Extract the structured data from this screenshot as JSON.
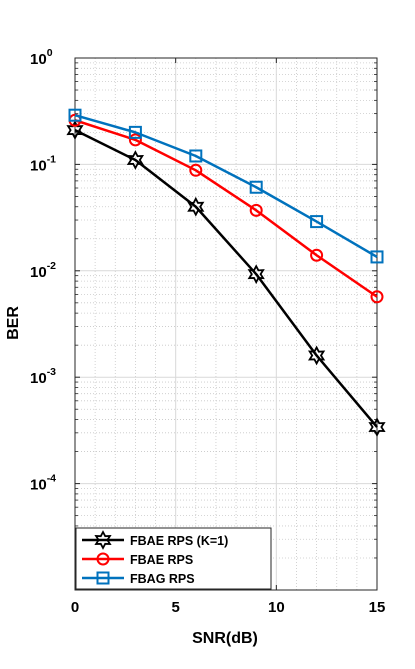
{
  "chart_data": {
    "type": "line",
    "title": "",
    "xlabel": "SNR(dB)",
    "ylabel": "BER",
    "xlim": [
      0,
      15
    ],
    "ylim": [
      1e-05,
      1
    ],
    "yscale": "log",
    "grid": true,
    "minor_grid": true,
    "legend_position": "bottom-left",
    "x": [
      0,
      3,
      6,
      9,
      12,
      15
    ],
    "x_ticks": [
      0,
      5,
      10,
      15
    ],
    "x_tick_labels": [
      "0",
      "5",
      "10",
      "15"
    ],
    "y_ticks": [
      1,
      0.1,
      0.01,
      0.001,
      0.0001
    ],
    "y_tick_labels": [
      {
        "base": "10",
        "exp": "0"
      },
      {
        "base": "10",
        "exp": "-1"
      },
      {
        "base": "10",
        "exp": "-2"
      },
      {
        "base": "10",
        "exp": "-3"
      },
      {
        "base": "10",
        "exp": "-4"
      }
    ],
    "series": [
      {
        "name": "FBAE RPS (K=1)",
        "color": "#000000",
        "marker": "hexagram",
        "values": [
          0.21,
          0.11,
          0.04,
          0.0093,
          0.0016,
          0.00034
        ]
      },
      {
        "name": "FBAE RPS",
        "color": "#ff0000",
        "marker": "circle",
        "values": [
          0.26,
          0.17,
          0.088,
          0.037,
          0.014,
          0.0057
        ]
      },
      {
        "name": "FBAG RPS",
        "color": "#0072bd",
        "marker": "square",
        "values": [
          0.29,
          0.2,
          0.12,
          0.061,
          0.029,
          0.0135
        ]
      }
    ]
  }
}
